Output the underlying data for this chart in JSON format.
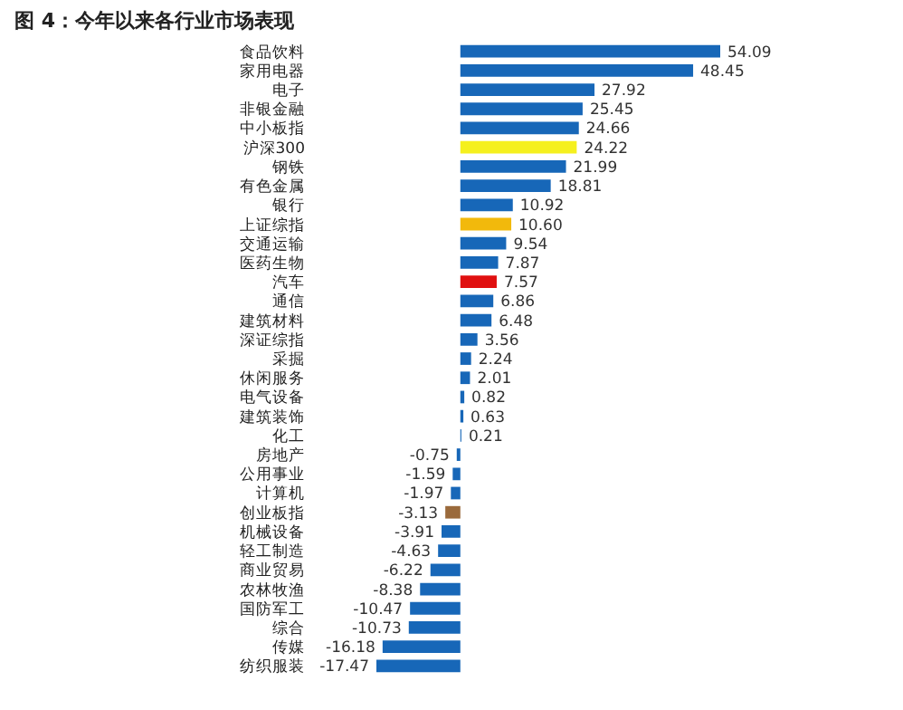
{
  "chart_data": {
    "type": "bar",
    "orientation": "horizontal",
    "title": "图 4：今年以来各行业市场表现",
    "categories": [
      "食品饮料",
      "家用电器",
      "电子",
      "非银金融",
      "中小板指",
      "沪深300",
      "钢铁",
      "有色金属",
      "银行",
      "上证综指",
      "交通运输",
      "医药生物",
      "汽车",
      "通信",
      "建筑材料",
      "深证综指",
      "采掘",
      "休闲服务",
      "电气设备",
      "建筑装饰",
      "化工",
      "房地产",
      "公用事业",
      "计算机",
      "创业板指",
      "机械设备",
      "轻工制造",
      "商业贸易",
      "农林牧渔",
      "国防军工",
      "综合",
      "传媒",
      "纺织服装"
    ],
    "values": [
      54.09,
      48.45,
      27.92,
      25.45,
      24.66,
      24.22,
      21.99,
      18.81,
      10.92,
      10.6,
      9.54,
      7.87,
      7.57,
      6.86,
      6.48,
      3.56,
      2.24,
      2.01,
      0.82,
      0.63,
      0.21,
      -0.75,
      -1.59,
      -1.97,
      -3.13,
      -3.91,
      -4.63,
      -6.22,
      -8.38,
      -10.47,
      -10.73,
      -16.18,
      -17.47
    ],
    "colors": [
      "#1767b8",
      "#1767b8",
      "#1767b8",
      "#1767b8",
      "#1767b8",
      "#f5f01e",
      "#1767b8",
      "#1767b8",
      "#1767b8",
      "#f2b90c",
      "#1767b8",
      "#1767b8",
      "#e01010",
      "#1767b8",
      "#1767b8",
      "#1767b8",
      "#1767b8",
      "#1767b8",
      "#1767b8",
      "#1767b8",
      "#1767b8",
      "#1767b8",
      "#1767b8",
      "#1767b8",
      "#9a6a3c",
      "#1767b8",
      "#1767b8",
      "#1767b8",
      "#1767b8",
      "#1767b8",
      "#1767b8",
      "#1767b8",
      "#1767b8"
    ],
    "value_labels": [
      "54.09",
      "48.45",
      "27.92",
      "25.45",
      "24.66",
      "24.22",
      "21.99",
      "18.81",
      "10.92",
      "10.60",
      "9.54",
      "7.87",
      "7.57",
      "6.86",
      "6.48",
      "3.56",
      "2.24",
      "2.01",
      "0.82",
      "0.63",
      "0.21",
      "-0.75",
      "-1.59",
      "-1.97",
      "-3.13",
      "-3.91",
      "-4.63",
      "-6.22",
      "-8.38",
      "-10.47",
      "-10.73",
      "-16.18",
      "-17.47"
    ]
  }
}
